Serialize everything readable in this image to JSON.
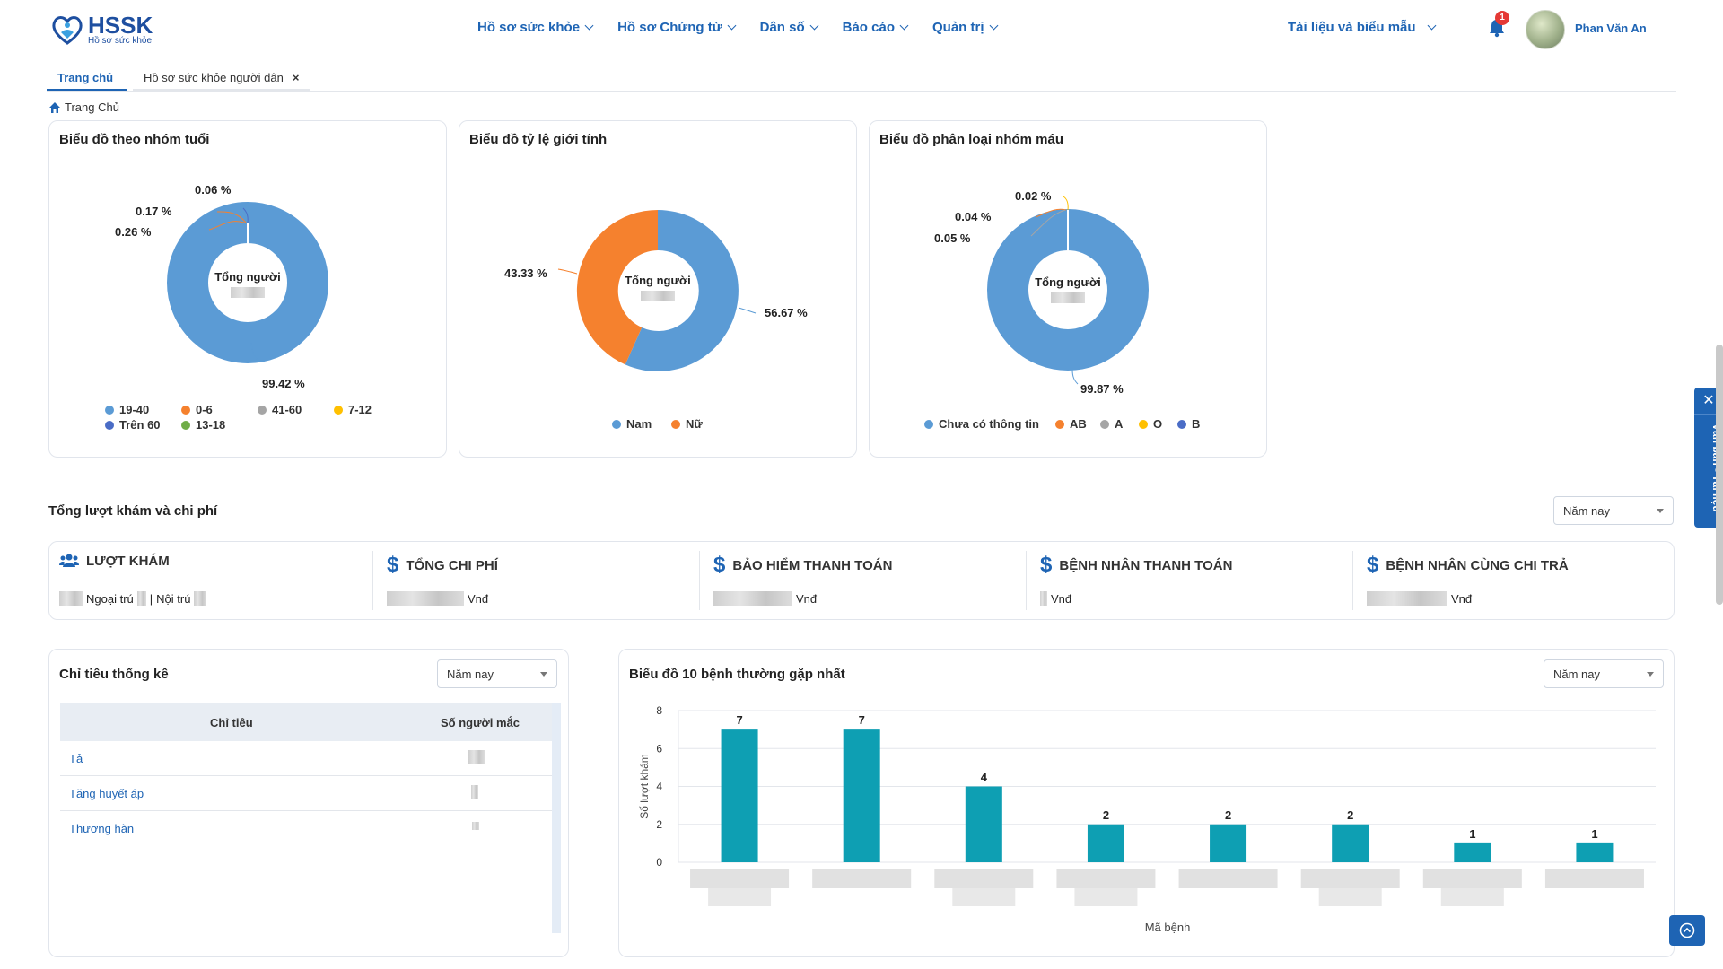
{
  "header": {
    "logo_title": "HSSK",
    "logo_subtitle": "Hồ sơ sức khỏe",
    "nav": [
      {
        "label": "Hồ sơ sức khỏe"
      },
      {
        "label": "Hồ sơ Chứng từ"
      },
      {
        "label": "Dân số"
      },
      {
        "label": "Báo cáo"
      },
      {
        "label": "Quản trị"
      }
    ],
    "docs_menu": "Tài liệu và biểu mẫu",
    "notification_count": "1",
    "user_name": "Phan Văn An"
  },
  "tabs": {
    "home": "Trang chủ",
    "citizen_health": "Hồ sơ sức khỏe người dân",
    "close_symbol": "×"
  },
  "breadcrumb": "Trang Chủ",
  "charts": {
    "age": {
      "title": "Biểu đồ theo nhóm tuổi",
      "center_label": "Tổng người",
      "labels": {
        "a": "0.06 %",
        "b": "0.17 %",
        "c": "0.26 %",
        "d": "99.42 %"
      },
      "legend": [
        "19-40",
        "0-6",
        "41-60",
        "7-12",
        "Trên 60",
        "13-18"
      ]
    },
    "gender": {
      "title": "Biểu đồ tỷ lệ giới tính",
      "center_label": "Tổng người",
      "labels": {
        "female": "43.33 %",
        "male": "56.67 %"
      },
      "legend": [
        "Nam",
        "Nữ"
      ]
    },
    "blood": {
      "title": "Biểu đồ phân loại nhóm máu",
      "center_label": "Tổng người",
      "labels": {
        "a": "0.02 %",
        "b": "0.04 %",
        "c": "0.05 %",
        "d": "99.87 %"
      },
      "legend": [
        "Chưa có thông tin",
        "AB",
        "A",
        "O",
        "B"
      ]
    }
  },
  "colors": {
    "blue": "#5b9bd5",
    "orange": "#f5812e",
    "gray": "#a5a5a5",
    "yellow": "#ffc000",
    "darkblue": "#4a6cc6",
    "green": "#70ad47",
    "teal": "#0e9fb3",
    "accent": "#1e64b4"
  },
  "summary": {
    "title": "Tổng lượt khám và chi phí",
    "period": "Năm nay",
    "visits": {
      "label": "LƯỢT KHÁM",
      "outpatient": "Ngoại trú",
      "inpatient": "Nội trú",
      "separator": "|"
    },
    "total_cost": {
      "label": "TỔNG CHI PHÍ",
      "unit": "Vnđ"
    },
    "insurance": {
      "label": "BẢO HIỂM THANH TOÁN",
      "unit": "Vnđ"
    },
    "patient_pay": {
      "label": "BỆNH NHÂN THANH TOÁN",
      "unit": "Vnđ"
    },
    "copay": {
      "label": "BỆNH NHÂN CÙNG CHI TRẢ",
      "unit": "Vnđ"
    }
  },
  "stats_table": {
    "title": "Chỉ tiêu thống kê",
    "period": "Năm nay",
    "columns": [
      "Chỉ tiêu",
      "Số người mắc"
    ],
    "rows": [
      {
        "name": "Tả"
      },
      {
        "name": "Tăng huyết áp"
      },
      {
        "name": "Thương hàn"
      }
    ]
  },
  "disease_chart": {
    "title": "Biểu đồ 10 bệnh thường gặp nhất",
    "period": "Năm nay"
  },
  "side_panel": {
    "label": "Văn bản - Tài liệu",
    "close_symbol": "✕"
  },
  "chart_data": {
    "type": "bar",
    "xlabel": "Mã bệnh",
    "ylabel": "Số lượt khám",
    "ylim": [
      0,
      8
    ],
    "yticks": [
      0,
      2,
      4,
      6,
      8
    ],
    "grid": true,
    "values": [
      7,
      7,
      4,
      2,
      2,
      2,
      1,
      1
    ]
  }
}
